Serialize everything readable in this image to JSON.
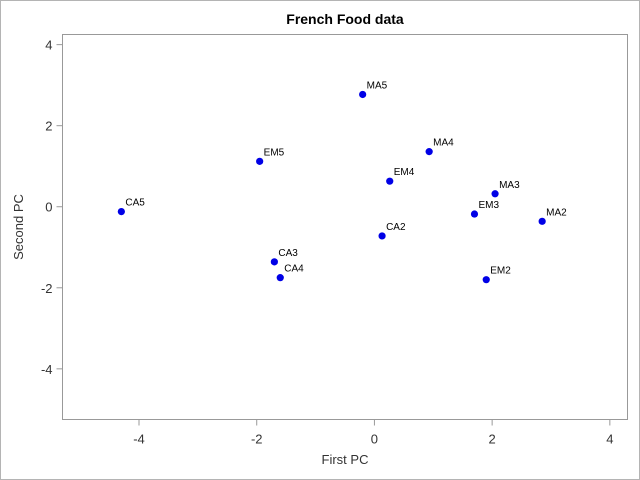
{
  "chart_data": {
    "type": "scatter",
    "title": "French Food data",
    "xlabel": "First PC",
    "ylabel": "Second PC",
    "xlim": [
      -5.3,
      4.3
    ],
    "ylim": [
      -5.25,
      4.25
    ],
    "xticks": [
      -4,
      -2,
      0,
      2,
      4
    ],
    "yticks": [
      -4,
      -2,
      0,
      2,
      4
    ],
    "xtick_labels": [
      "-4",
      "-2",
      "0",
      "2",
      "4"
    ],
    "ytick_labels": [
      "-4",
      "-2",
      "0",
      "2",
      "4"
    ],
    "grid": false,
    "marker_color": "#0000e6",
    "points": [
      {
        "label": "MA5",
        "x": -0.2,
        "y": 2.77
      },
      {
        "label": "MA4",
        "x": 0.93,
        "y": 1.36
      },
      {
        "label": "EM5",
        "x": -1.95,
        "y": 1.12
      },
      {
        "label": "EM4",
        "x": 0.26,
        "y": 0.63
      },
      {
        "label": "MA3",
        "x": 2.05,
        "y": 0.32
      },
      {
        "label": "CA5",
        "x": -4.3,
        "y": -0.12
      },
      {
        "label": "EM3",
        "x": 1.7,
        "y": -0.18
      },
      {
        "label": "MA2",
        "x": 2.85,
        "y": -0.36
      },
      {
        "label": "CA2",
        "x": 0.13,
        "y": -0.72
      },
      {
        "label": "CA3",
        "x": -1.7,
        "y": -1.36
      },
      {
        "label": "CA4",
        "x": -1.6,
        "y": -1.75
      },
      {
        "label": "EM2",
        "x": 1.9,
        "y": -1.8
      }
    ]
  }
}
